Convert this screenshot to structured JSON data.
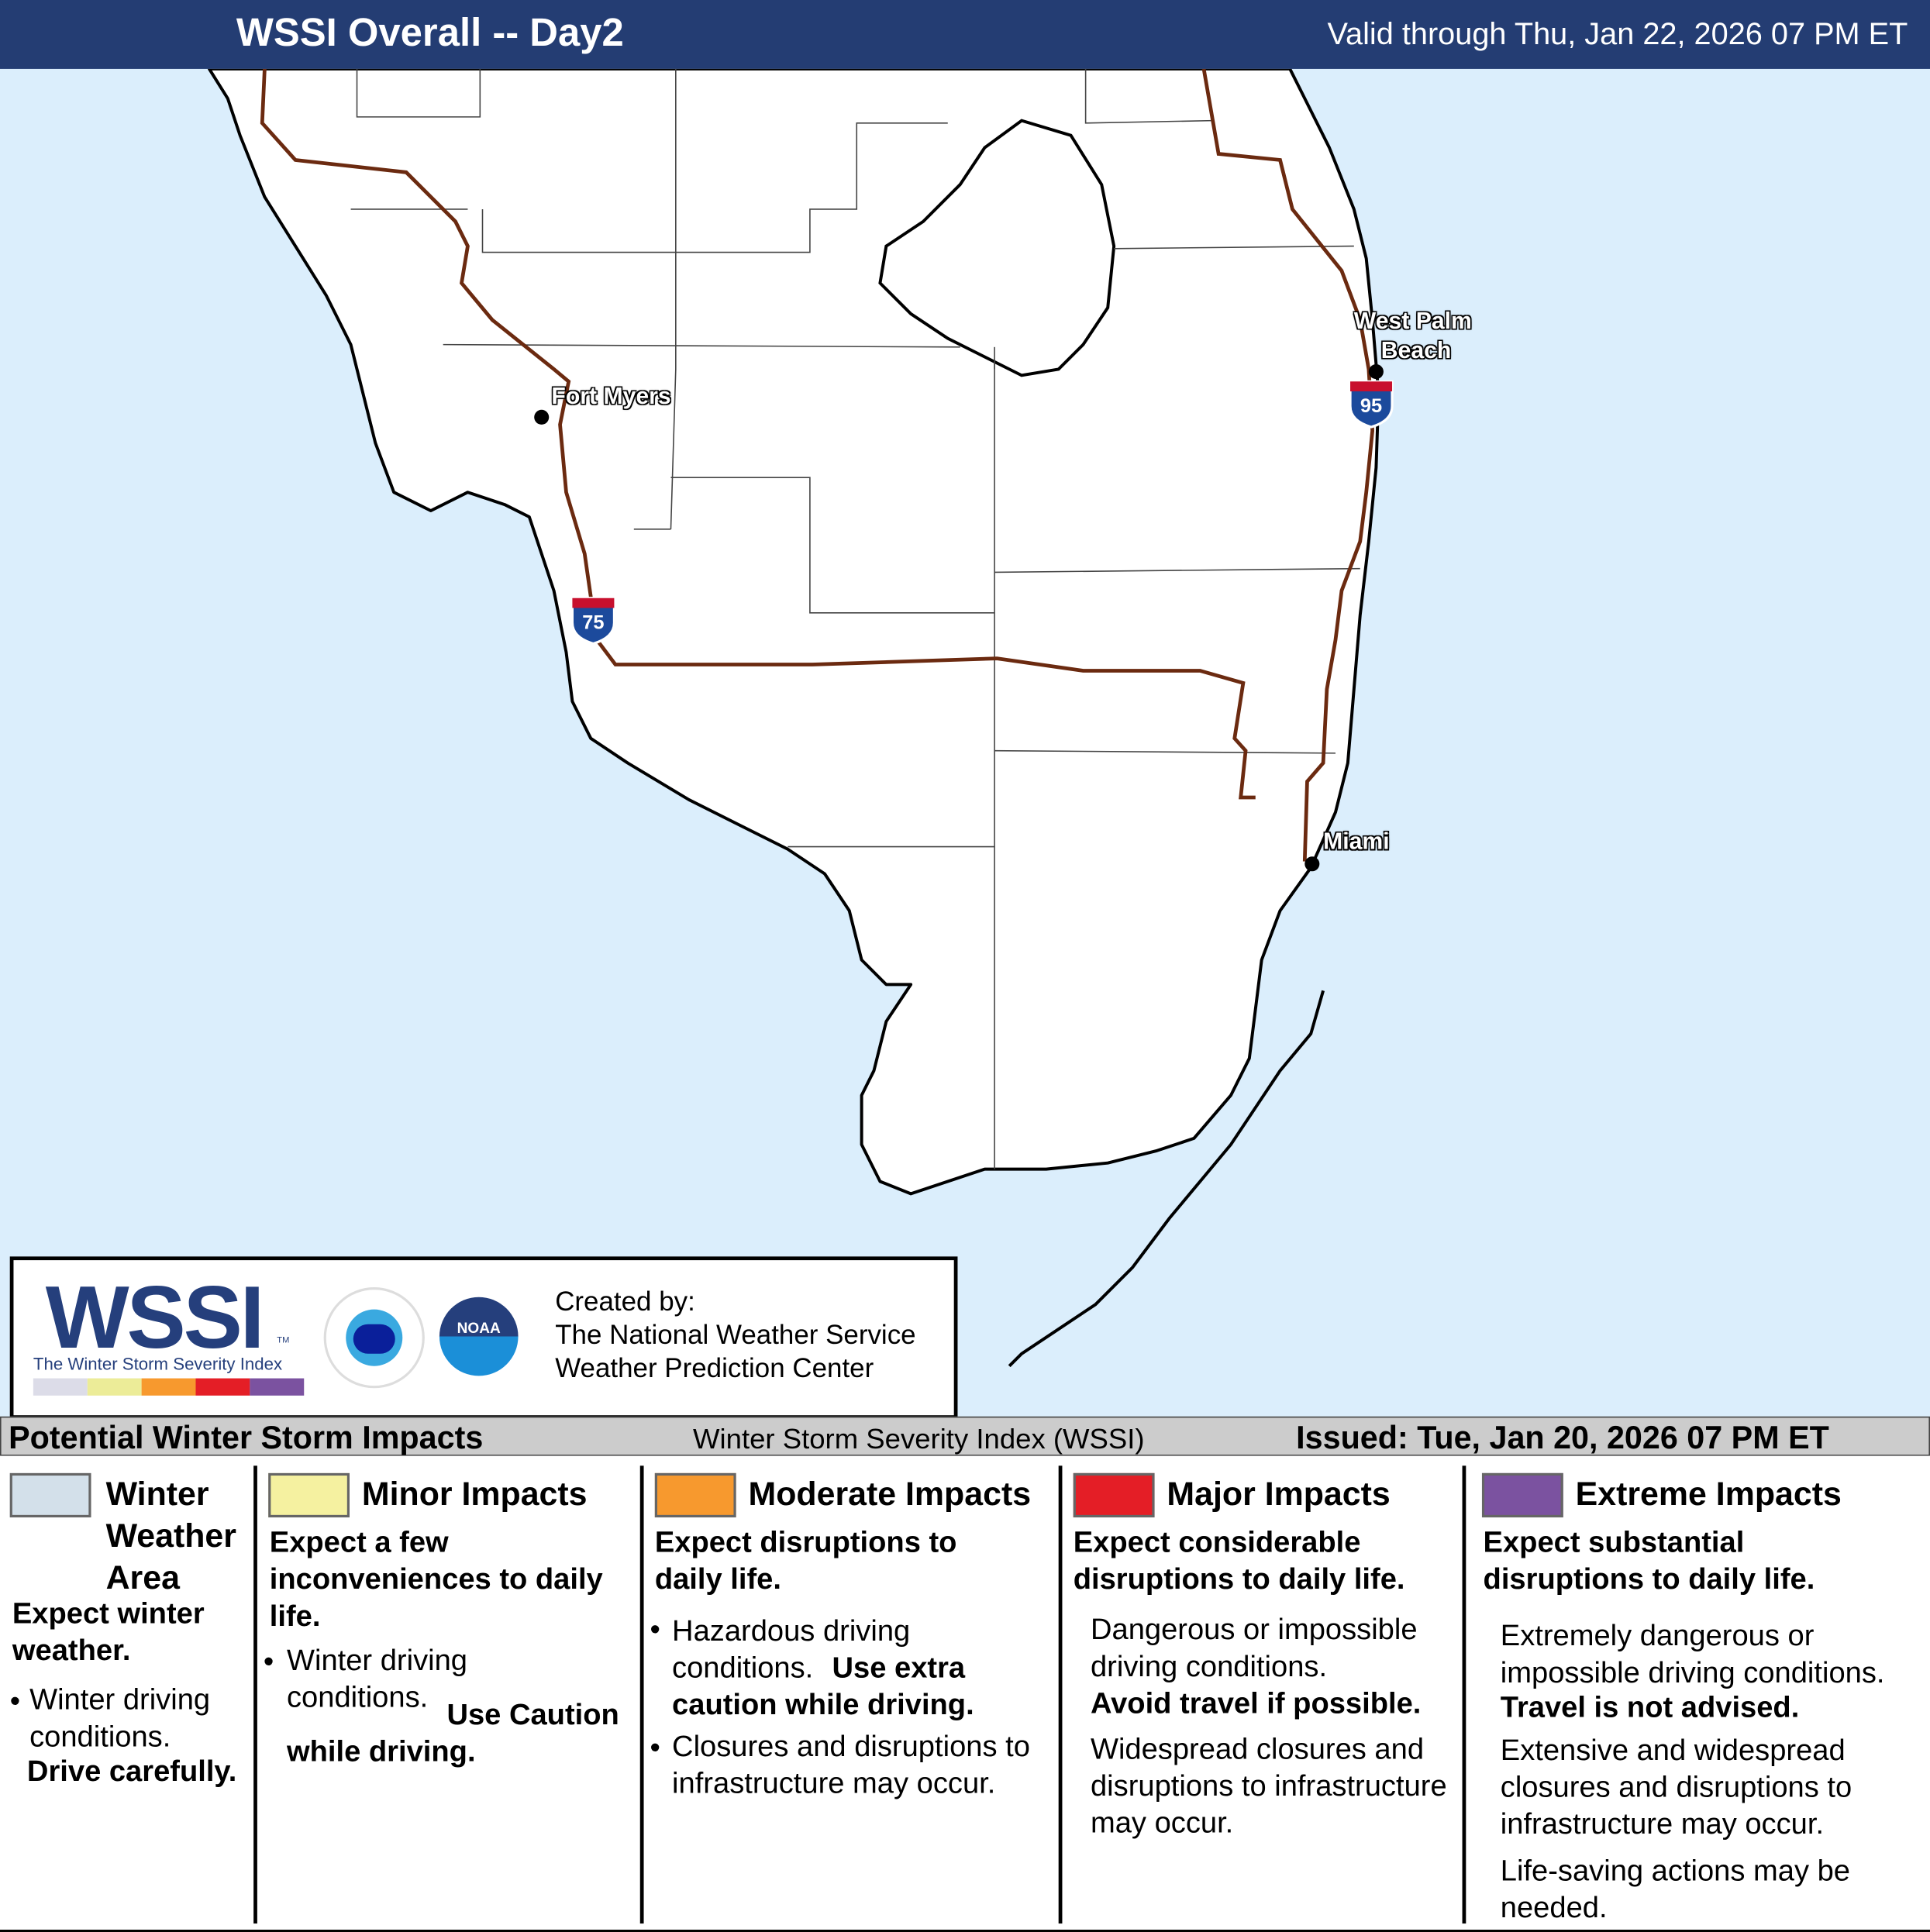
{
  "header": {
    "title": "WSSI Overall -- Day2",
    "valid": "Valid through Thu, Jan 22, 2026 07 PM ET"
  },
  "map": {
    "cities": [
      {
        "name": "Fort Myers"
      },
      {
        "name": "West Palm Beach",
        "line1": "West Palm",
        "line2": "Beach"
      },
      {
        "name": "Miami"
      }
    ],
    "interstates": [
      "75",
      "95"
    ],
    "colors": {
      "water": "#dbeefc",
      "land": "#ffffff",
      "road": "#6b2a10",
      "coast": "#000000"
    }
  },
  "logo": {
    "wssi": "WSSI",
    "tm": "TM",
    "subtitle": "The Winter Storm Severity Index",
    "nws_text": "NATIONAL WEATHER SERVICE",
    "noaa_text": "NOAA",
    "created_by": "Created by:",
    "org1": "The National Weather Service",
    "org2": "Weather Prediction Center"
  },
  "strip": {
    "left": "Potential Winter Storm Impacts",
    "center": "Winter Storm Severity Index (WSSI)",
    "issued": "Issued: Tue, Jan 20, 2026 07 PM ET"
  },
  "legend": [
    {
      "title_l1": "Winter",
      "title_l2": "Weather",
      "title_l3": "Area",
      "color": "#d3e0ea",
      "headline": "Expect winter weather.",
      "bullet": "Winter driving conditions.",
      "bold": "Drive carefully."
    },
    {
      "title": "Minor Impacts",
      "color": "#f5f1a0",
      "headline": "Expect a few inconveniences to daily life.",
      "bullet": "Winter driving conditions.",
      "bold": "Use Caution while driving."
    },
    {
      "title": "Moderate Impacts",
      "color": "#f7992e",
      "headline": "Expect disruptions to daily life.",
      "bullet1": "Hazardous driving conditions.",
      "bold1": "Use extra caution while driving.",
      "bullet2": "Closures and disruptions to infrastructure may occur."
    },
    {
      "title": "Major Impacts",
      "color": "#e41e26",
      "headline": "Expect considerable disruptions to daily life.",
      "p1": "Dangerous or impossible driving conditions.",
      "bold1": "Avoid travel if possible.",
      "p2": "Widespread closures and disruptions to infrastructure may occur."
    },
    {
      "title": "Extreme Impacts",
      "color": "#7b52a0",
      "headline": "Expect substantial disruptions to daily life.",
      "p1": "Extremely dangerous or impossible driving conditions.",
      "bold1": "Travel is not advised.",
      "p2": "Extensive and widespread closures and disruptions to infrastructure may occur.",
      "p3": "Life-saving actions may be needed."
    }
  ]
}
